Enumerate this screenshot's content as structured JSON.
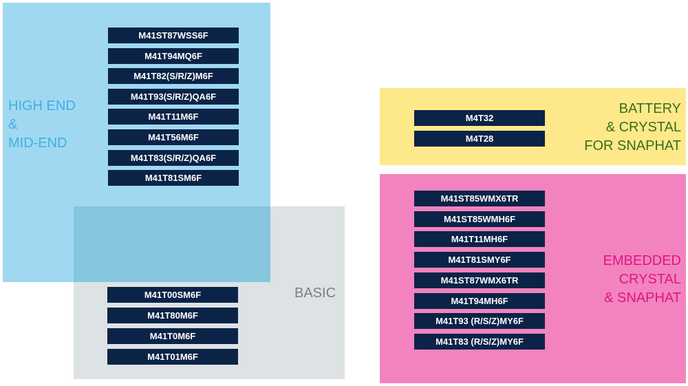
{
  "groups": {
    "high_end": {
      "label_lines": [
        "HIGH END",
        "&",
        "MID-END"
      ],
      "color": "#a0d8f1",
      "text_color": "#3fb0e0",
      "items": [
        "M41ST87WSS6F",
        "M41T94MQ6F",
        "M41T82(S/R/Z)M6F",
        "M41T93(S/R/Z)QA6F",
        "M41T11M6F",
        "M41T56M6F",
        "M41T83(S/R/Z)QA6F",
        "M41T81SM6F"
      ]
    },
    "basic": {
      "label": "BASIC",
      "color": "#dde2e4",
      "text_color": "#7a7f82",
      "items": [
        "M41T00SM6F",
        "M41T80M6F",
        "M41T0M6F",
        "M41T01M6F"
      ]
    },
    "battery": {
      "label_lines": [
        "BATTERY",
        "& CRYSTAL",
        "FOR SNAPHAT"
      ],
      "color": "#fde98a",
      "text_color": "#3b6b1e",
      "items": [
        "M4T32",
        "M4T28"
      ]
    },
    "embedded": {
      "label_lines": [
        "EMBEDDED",
        "CRYSTAL",
        "& SNAPHAT"
      ],
      "color": "#f283bf",
      "text_color": "#e0157f",
      "items": [
        "M41ST85WMX6TR",
        "M41ST85WMH6F",
        "M41T11MH6F",
        "M41T81SMY6F",
        "M41ST87WMX6TR",
        "M41T94MH6F",
        "M41T93 (R/S/Z)MY6F",
        "M41T83 (R/S/Z)MY6F"
      ]
    }
  },
  "chip_color": "#0b2347",
  "overlap_color": "#87c6df"
}
